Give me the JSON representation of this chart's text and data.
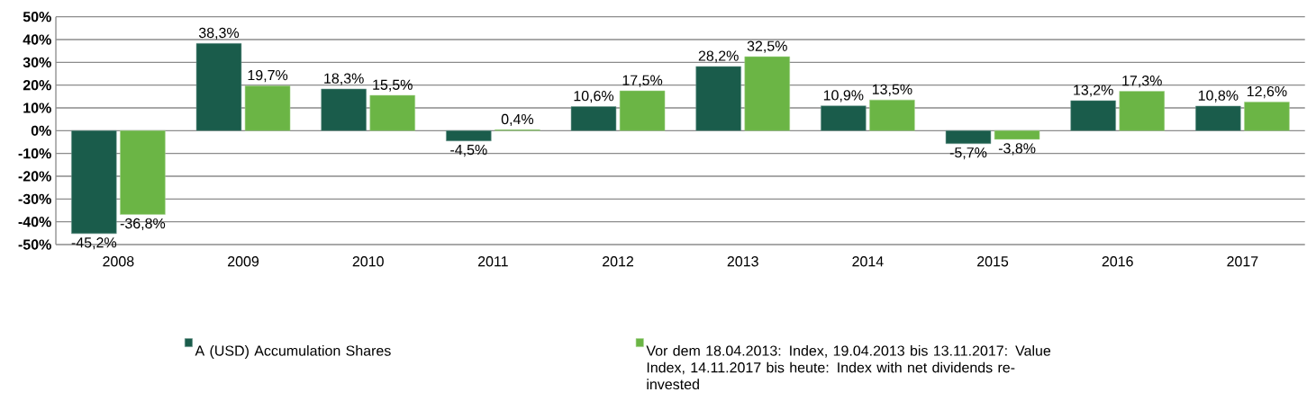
{
  "chart_data": {
    "type": "bar",
    "categories": [
      "2008",
      "2009",
      "2010",
      "2011",
      "2012",
      "2013",
      "2014",
      "2015",
      "2016",
      "2017"
    ],
    "series": [
      {
        "name": "A (USD) Accumulation Shares",
        "color": "#1a5c4b",
        "values": [
          -45.2,
          38.3,
          18.3,
          -4.5,
          10.6,
          28.2,
          10.9,
          -5.7,
          13.2,
          10.8
        ],
        "value_labels": [
          "-45,2%",
          "38,3%",
          "18,3%",
          "-4,5%",
          "10,6%",
          "28,2%",
          "10,9%",
          "-5,7%",
          "13,2%",
          "10,8%"
        ]
      },
      {
        "name": "Vor dem 18.04.2013: Index, 19.04.2013 bis 13.11.2017: Value Index, 14.11.2017 bis heute: Index with net dividends re-invested",
        "color": "#6bb545",
        "values": [
          -36.8,
          19.7,
          15.5,
          0.4,
          17.5,
          32.5,
          13.5,
          -3.8,
          17.3,
          12.6
        ],
        "value_labels": [
          "-36,8%",
          "19,7%",
          "15,5%",
          "0,4%",
          "17,5%",
          "32,5%",
          "13,5%",
          "-3,8%",
          "17,3%",
          "12,6%"
        ]
      }
    ],
    "ylim": [
      -50,
      50
    ],
    "yticks": [
      {
        "value": -50,
        "label": "-50%"
      },
      {
        "value": -40,
        "label": "-40%"
      },
      {
        "value": -30,
        "label": "-30%"
      },
      {
        "value": -20,
        "label": "-20%"
      },
      {
        "value": -10,
        "label": "-10%"
      },
      {
        "value": 0,
        "label": "0%"
      },
      {
        "value": 10,
        "label": "10%"
      },
      {
        "value": 20,
        "label": "20%"
      },
      {
        "value": 30,
        "label": "30%"
      },
      {
        "value": 40,
        "label": "40%"
      },
      {
        "value": 50,
        "label": "50%"
      }
    ],
    "grid": "y",
    "legend": "bottom"
  }
}
